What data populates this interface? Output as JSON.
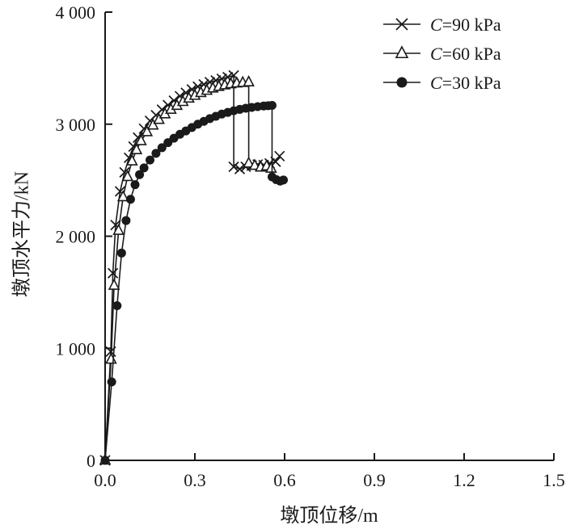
{
  "figure": {
    "background": "#ffffff",
    "line_color": "#1a1a1a"
  },
  "chart_data": {
    "type": "line",
    "title": "",
    "xlabel": "墩顶位移/m",
    "ylabel": "墩顶水平力/kN",
    "xlim": [
      0,
      1.5
    ],
    "ylim": [
      0,
      4000
    ],
    "grid": false,
    "legend_position": "top-right-inside",
    "x_ticks": [
      0,
      0.3,
      0.6,
      0.9,
      1.2,
      1.5
    ],
    "x_tick_labels": [
      "0.0",
      "0.3",
      "0.6",
      "0.9",
      "1.2",
      "1.5"
    ],
    "y_ticks": [
      0,
      1000,
      2000,
      3000,
      4000
    ],
    "y_tick_labels": [
      "0",
      "1 000",
      "2 000",
      "3 000",
      "4 000"
    ],
    "series": [
      {
        "id": "c90",
        "name": "C=90 kPa",
        "marker": "x",
        "points": [
          [
            0,
            0
          ],
          [
            0.019,
            970
          ],
          [
            0.026,
            1670
          ],
          [
            0.035,
            2100
          ],
          [
            0.05,
            2400
          ],
          [
            0.065,
            2570
          ],
          [
            0.08,
            2700
          ],
          [
            0.095,
            2800
          ],
          [
            0.11,
            2880
          ],
          [
            0.13,
            2960
          ],
          [
            0.15,
            3030
          ],
          [
            0.17,
            3080
          ],
          [
            0.19,
            3130
          ],
          [
            0.21,
            3170
          ],
          [
            0.23,
            3210
          ],
          [
            0.25,
            3250
          ],
          [
            0.27,
            3280
          ],
          [
            0.29,
            3310
          ],
          [
            0.31,
            3335
          ],
          [
            0.33,
            3355
          ],
          [
            0.35,
            3375
          ],
          [
            0.37,
            3390
          ],
          [
            0.39,
            3405
          ],
          [
            0.41,
            3420
          ],
          [
            0.43,
            3435
          ],
          [
            0.43,
            2620
          ],
          [
            0.45,
            2600
          ],
          [
            0.47,
            2620
          ],
          [
            0.49,
            2630
          ],
          [
            0.51,
            2640
          ],
          [
            0.53,
            2635
          ],
          [
            0.55,
            2650
          ],
          [
            0.57,
            2665
          ],
          [
            0.583,
            2715
          ]
        ]
      },
      {
        "id": "c60",
        "name": "C=60 kPa",
        "marker": "triangle-open",
        "points": [
          [
            0,
            0
          ],
          [
            0.02,
            900
          ],
          [
            0.03,
            1560
          ],
          [
            0.045,
            2050
          ],
          [
            0.06,
            2350
          ],
          [
            0.075,
            2530
          ],
          [
            0.09,
            2670
          ],
          [
            0.105,
            2770
          ],
          [
            0.12,
            2850
          ],
          [
            0.14,
            2930
          ],
          [
            0.16,
            2990
          ],
          [
            0.18,
            3040
          ],
          [
            0.2,
            3090
          ],
          [
            0.22,
            3130
          ],
          [
            0.24,
            3165
          ],
          [
            0.26,
            3200
          ],
          [
            0.28,
            3230
          ],
          [
            0.3,
            3255
          ],
          [
            0.32,
            3280
          ],
          [
            0.34,
            3300
          ],
          [
            0.36,
            3320
          ],
          [
            0.38,
            3335
          ],
          [
            0.4,
            3348
          ],
          [
            0.42,
            3358
          ],
          [
            0.44,
            3365
          ],
          [
            0.46,
            3370
          ],
          [
            0.48,
            3375
          ],
          [
            0.48,
            2650
          ],
          [
            0.5,
            2630
          ],
          [
            0.52,
            2615
          ],
          [
            0.54,
            2625
          ],
          [
            0.555,
            2605
          ]
        ]
      },
      {
        "id": "c30",
        "name": "C=30 kPa",
        "marker": "circle-filled",
        "points": [
          [
            0,
            0
          ],
          [
            0.022,
            700
          ],
          [
            0.04,
            1380
          ],
          [
            0.055,
            1850
          ],
          [
            0.07,
            2140
          ],
          [
            0.085,
            2330
          ],
          [
            0.1,
            2460
          ],
          [
            0.115,
            2550
          ],
          [
            0.13,
            2610
          ],
          [
            0.15,
            2680
          ],
          [
            0.17,
            2740
          ],
          [
            0.19,
            2790
          ],
          [
            0.21,
            2835
          ],
          [
            0.23,
            2875
          ],
          [
            0.25,
            2910
          ],
          [
            0.27,
            2940
          ],
          [
            0.29,
            2970
          ],
          [
            0.31,
            3000
          ],
          [
            0.33,
            3025
          ],
          [
            0.35,
            3050
          ],
          [
            0.37,
            3070
          ],
          [
            0.39,
            3090
          ],
          [
            0.41,
            3105
          ],
          [
            0.43,
            3120
          ],
          [
            0.45,
            3132
          ],
          [
            0.47,
            3142
          ],
          [
            0.49,
            3150
          ],
          [
            0.51,
            3157
          ],
          [
            0.53,
            3162
          ],
          [
            0.545,
            3165
          ],
          [
            0.558,
            3168
          ],
          [
            0.558,
            2530
          ],
          [
            0.572,
            2505
          ],
          [
            0.585,
            2492
          ],
          [
            0.596,
            2502
          ]
        ]
      }
    ]
  }
}
